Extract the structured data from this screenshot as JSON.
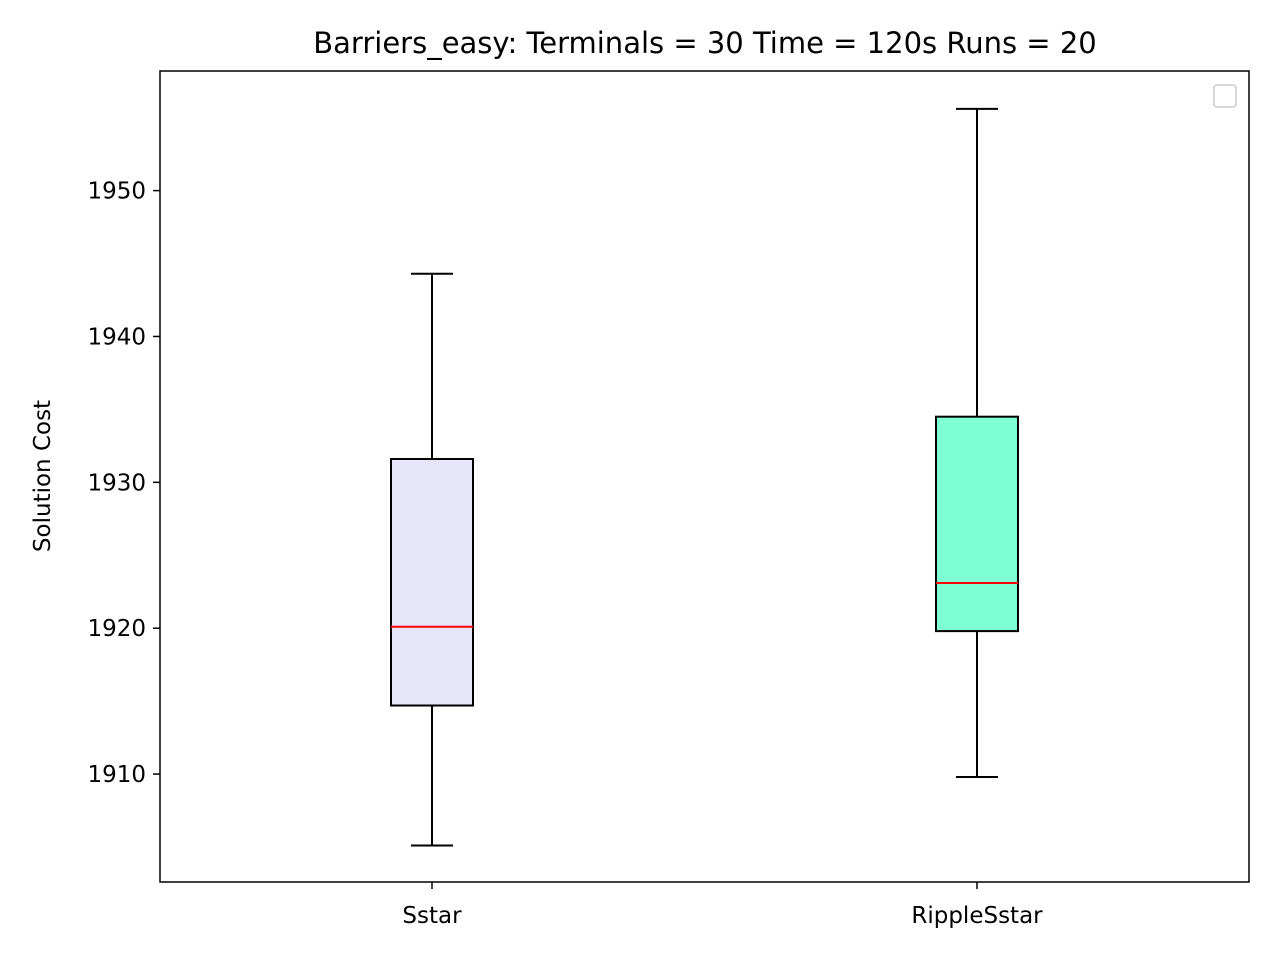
{
  "chart_data": {
    "type": "box",
    "title": "Barriers_easy:  Terminals = 30  Time = 120s  Runs = 20",
    "xlabel": "",
    "ylabel": "Solution Cost",
    "ylim": [
      1902.6,
      1958.2
    ],
    "yticks": [
      1910,
      1920,
      1930,
      1940,
      1950
    ],
    "categories": [
      "Sstar",
      "RippleSstar"
    ],
    "boxes": [
      {
        "label": "Sstar",
        "whisker_low": 1905.1,
        "q1": 1914.7,
        "median": 1920.1,
        "q3": 1931.6,
        "whisker_high": 1944.3,
        "color": "#e6e6fa"
      },
      {
        "label": "RippleSstar",
        "whisker_low": 1909.8,
        "q1": 1919.8,
        "median": 1923.1,
        "q3": 1934.5,
        "whisker_high": 1955.6,
        "color": "#7fffd4"
      }
    ],
    "median_color": "#ff0000",
    "grid": false,
    "legend": "top-right (empty)"
  }
}
